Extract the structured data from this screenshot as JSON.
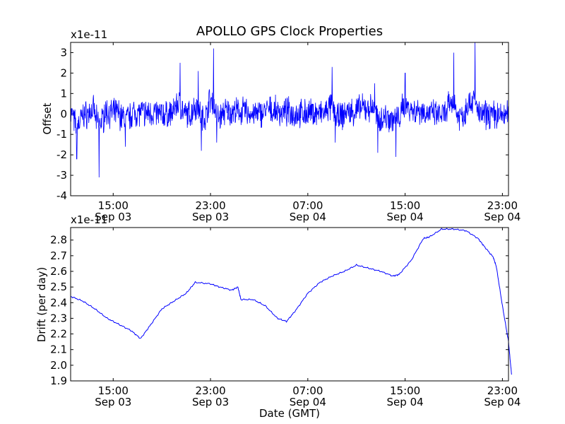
{
  "chart_data": [
    {
      "type": "line",
      "title": "APOLLO GPS Clock Properties",
      "xlabel": "",
      "ylabel": "Offset",
      "offset_text": "x1e-11",
      "x_axis": "time (GMT)",
      "xlim": [
        "Sep 03 11:30",
        "Sep 04 23:30"
      ],
      "ylim": [
        -4,
        3.5
      ],
      "yticks": [
        -4,
        -3,
        -2,
        -1,
        0,
        1,
        2,
        3
      ],
      "xticks": [
        {
          "time": "Sep 03 15:00",
          "line1": "15:00",
          "line2": "Sep 03"
        },
        {
          "time": "Sep 03 23:00",
          "line1": "23:00",
          "line2": "Sep 03"
        },
        {
          "time": "Sep 04 07:00",
          "line1": "07:00",
          "line2": "Sep 04"
        },
        {
          "time": "Sep 04 15:00",
          "line1": "15:00",
          "line2": "Sep 04"
        },
        {
          "time": "Sep 04 23:00",
          "line1": "23:00",
          "line2": "Sep 04"
        }
      ],
      "color": "#0000ff",
      "series_points": [
        [
          "Sep 03 11:30",
          0.6
        ],
        [
          "Sep 03 11:45",
          -0.8
        ],
        [
          "Sep 03 12:00",
          -2.2
        ],
        [
          "Sep 03 12:15",
          -1.2
        ],
        [
          "Sep 03 12:30",
          -0.4
        ],
        [
          "Sep 03 13:00",
          0.2
        ],
        [
          "Sep 03 13:30",
          0.8
        ],
        [
          "Sep 03 13:50",
          -3.1
        ],
        [
          "Sep 03 14:15",
          0.9
        ],
        [
          "Sep 03 14:45",
          -0.3
        ],
        [
          "Sep 03 15:30",
          0.6
        ],
        [
          "Sep 03 16:00",
          -1.6
        ],
        [
          "Sep 03 16:30",
          0.4
        ],
        [
          "Sep 03 17:30",
          0.0
        ],
        [
          "Sep 03 18:30",
          0.3
        ],
        [
          "Sep 03 19:30",
          -0.4
        ],
        [
          "Sep 03 20:00",
          0.5
        ],
        [
          "Sep 03 20:30",
          2.5
        ],
        [
          "Sep 03 20:45",
          -0.5
        ],
        [
          "Sep 03 21:30",
          0.3
        ],
        [
          "Sep 03 22:00",
          2.1
        ],
        [
          "Sep 03 22:15",
          -1.8
        ],
        [
          "Sep 03 22:45",
          0.9
        ],
        [
          "Sep 03 23:15",
          3.2
        ],
        [
          "Sep 03 23:30",
          -1.4
        ],
        [
          "Sep 04 00:00",
          0.5
        ],
        [
          "Sep 04 01:00",
          0.2
        ],
        [
          "Sep 04 02:00",
          0.6
        ],
        [
          "Sep 04 03:00",
          -0.6
        ],
        [
          "Sep 04 03:30",
          1.0
        ],
        [
          "Sep 04 04:30",
          0.1
        ],
        [
          "Sep 04 05:30",
          0.5
        ],
        [
          "Sep 04 06:30",
          -0.3
        ],
        [
          "Sep 04 07:30",
          0.6
        ],
        [
          "Sep 04 08:30",
          -0.4
        ],
        [
          "Sep 04 09:00",
          2.3
        ],
        [
          "Sep 04 09:15",
          -1.4
        ],
        [
          "Sep 04 10:00",
          0.4
        ],
        [
          "Sep 04 11:00",
          0.3
        ],
        [
          "Sep 04 12:30",
          1.5
        ],
        [
          "Sep 04 12:45",
          -1.9
        ],
        [
          "Sep 04 13:30",
          0.6
        ],
        [
          "Sep 04 14:15",
          -2.1
        ],
        [
          "Sep 04 14:45",
          1.0
        ],
        [
          "Sep 04 15:00",
          2.0
        ],
        [
          "Sep 04 15:30",
          0.4
        ],
        [
          "Sep 04 16:30",
          0.8
        ],
        [
          "Sep 04 17:30",
          -0.6
        ],
        [
          "Sep 04 18:30",
          0.3
        ],
        [
          "Sep 04 19:00",
          3.0
        ],
        [
          "Sep 04 19:15",
          -0.8
        ],
        [
          "Sep 04 20:00",
          0.5
        ],
        [
          "Sep 04 20:45",
          3.5
        ],
        [
          "Sep 04 21:00",
          -0.6
        ],
        [
          "Sep 04 22:00",
          0.3
        ],
        [
          "Sep 04 23:00",
          -0.7
        ],
        [
          "Sep 04 23:30",
          0.4
        ]
      ]
    },
    {
      "type": "line",
      "title": "",
      "xlabel": "Date (GMT)",
      "ylabel": "Drift (per day)",
      "offset_text": "x1e-11",
      "x_axis": "time (GMT)",
      "xlim": [
        "Sep 03 11:30",
        "Sep 04 23:30"
      ],
      "ylim": [
        1.9,
        2.88
      ],
      "yticks": [
        1.9,
        2.0,
        2.1,
        2.2,
        2.3,
        2.4,
        2.5,
        2.6,
        2.7,
        2.8
      ],
      "xticks": [
        {
          "time": "Sep 03 15:00",
          "line1": "15:00",
          "line2": "Sep 03"
        },
        {
          "time": "Sep 03 23:00",
          "line1": "23:00",
          "line2": "Sep 03"
        },
        {
          "time": "Sep 04 07:00",
          "line1": "07:00",
          "line2": "Sep 04"
        },
        {
          "time": "Sep 04 15:00",
          "line1": "15:00",
          "line2": "Sep 04"
        },
        {
          "time": "Sep 04 23:00",
          "line1": "23:00",
          "line2": "Sep 04"
        }
      ],
      "color": "#0000ff",
      "points": [
        [
          "Sep 03 11:30",
          2.44
        ],
        [
          "Sep 03 12:30",
          2.41
        ],
        [
          "Sep 03 13:30",
          2.36
        ],
        [
          "Sep 03 14:30",
          2.3
        ],
        [
          "Sep 03 15:30",
          2.26
        ],
        [
          "Sep 03 16:30",
          2.22
        ],
        [
          "Sep 03 17:15",
          2.17
        ],
        [
          "Sep 03 18:00",
          2.25
        ],
        [
          "Sep 03 19:00",
          2.36
        ],
        [
          "Sep 03 20:00",
          2.41
        ],
        [
          "Sep 03 21:00",
          2.46
        ],
        [
          "Sep 03 21:45",
          2.53
        ],
        [
          "Sep 03 23:00",
          2.52
        ],
        [
          "Sep 03 23:45",
          2.5
        ],
        [
          "Sep 04 00:45",
          2.48
        ],
        [
          "Sep 04 01:15",
          2.5
        ],
        [
          "Sep 04 01:30",
          2.42
        ],
        [
          "Sep 04 02:30",
          2.42
        ],
        [
          "Sep 04 03:30",
          2.38
        ],
        [
          "Sep 04 04:30",
          2.3
        ],
        [
          "Sep 04 05:15",
          2.28
        ],
        [
          "Sep 04 06:00",
          2.35
        ],
        [
          "Sep 04 07:00",
          2.46
        ],
        [
          "Sep 04 08:00",
          2.53
        ],
        [
          "Sep 04 09:00",
          2.57
        ],
        [
          "Sep 04 10:00",
          2.6
        ],
        [
          "Sep 04 11:00",
          2.64
        ],
        [
          "Sep 04 12:00",
          2.62
        ],
        [
          "Sep 04 13:00",
          2.6
        ],
        [
          "Sep 04 14:00",
          2.57
        ],
        [
          "Sep 04 14:30",
          2.58
        ],
        [
          "Sep 04 15:30",
          2.67
        ],
        [
          "Sep 04 16:30",
          2.81
        ],
        [
          "Sep 04 17:00",
          2.82
        ],
        [
          "Sep 04 18:00",
          2.87
        ],
        [
          "Sep 04 19:00",
          2.87
        ],
        [
          "Sep 04 20:00",
          2.86
        ],
        [
          "Sep 04 21:00",
          2.81
        ],
        [
          "Sep 04 21:30",
          2.76
        ],
        [
          "Sep 04 22:15",
          2.69
        ],
        [
          "Sep 04 22:30",
          2.63
        ],
        [
          "Sep 04 23:00",
          2.38
        ],
        [
          "Sep 04 23:30",
          2.15
        ],
        [
          "Sep 04 23:45",
          1.94
        ]
      ]
    }
  ]
}
